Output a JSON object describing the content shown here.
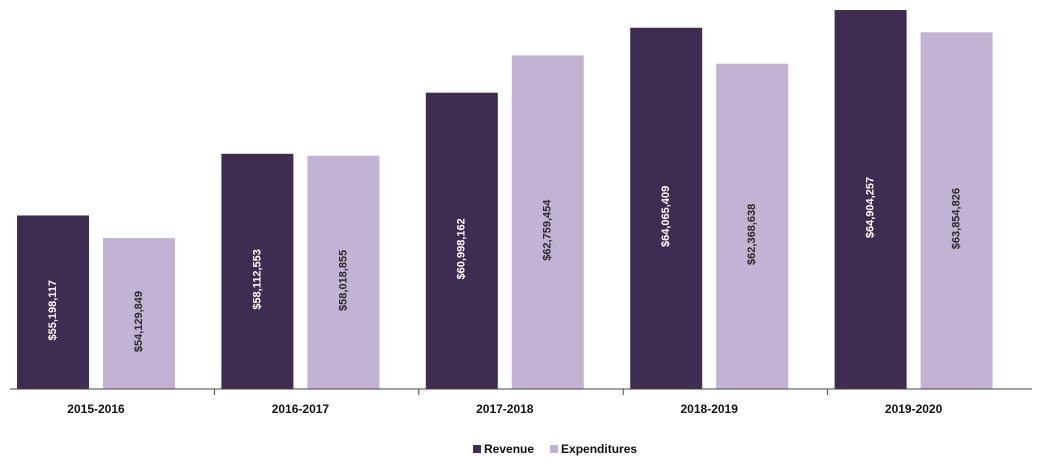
{
  "chart_data": {
    "type": "bar",
    "categories": [
      "2015-2016",
      "2016-2017",
      "2017-2018",
      "2018-2019",
      "2019-2020"
    ],
    "series": [
      {
        "name": "Revenue",
        "color": "#3d2d50",
        "values": [
          55198117,
          58112553,
          60998162,
          64065409,
          64904257
        ],
        "labels": [
          "$55,198,117",
          "$58,112,553",
          "$60,998,162",
          "$64,065,409",
          "$64,904,257"
        ]
      },
      {
        "name": "Expenditures",
        "color": "#c1b3d3",
        "values": [
          54129849,
          58018855,
          62759454,
          62368638,
          63854826
        ],
        "labels": [
          "$54,129,849",
          "$58,018,855",
          "$62,759,454",
          "$62,368,638",
          "$63,854,826"
        ]
      }
    ],
    "ylim": [
      47000000,
      65000000
    ],
    "legend_position": "bottom-center",
    "grid": false
  }
}
